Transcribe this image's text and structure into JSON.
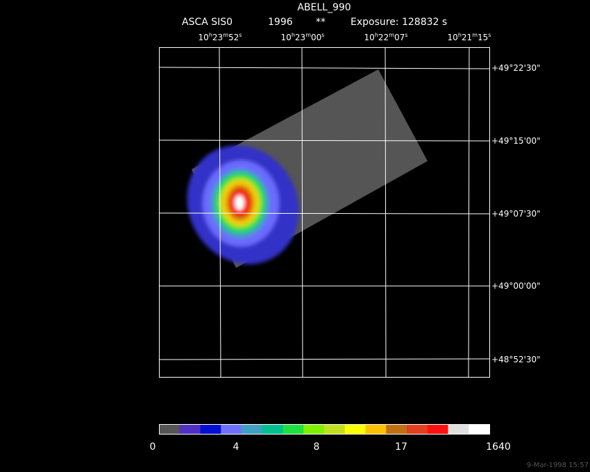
{
  "header": {
    "title": "ABELL_990",
    "instrument": "ASCA SIS0",
    "year": "1996",
    "flag": "**",
    "exposure": "Exposure: 128832 s"
  },
  "ra_labels": [
    "10h23m52s",
    "10h23m00s",
    "10h22m07s",
    "10h21m15s"
  ],
  "dec_labels": [
    "+49°22'30\"",
    "+49°15'00\"",
    "+49°07'30\"",
    "+49°00'00\"",
    "+48°52'30\""
  ],
  "colorbar": {
    "colors": [
      "#555555",
      "#5030c0",
      "#0010d0",
      "#7070ff",
      "#40a0c0",
      "#00c090",
      "#20e040",
      "#80f000",
      "#c0e020",
      "#ffff00",
      "#ffc000",
      "#c07010",
      "#e04020",
      "#ff1010",
      "#e0e0e0",
      "#ffffff"
    ],
    "labels": [
      "0",
      "4",
      "8",
      "17",
      "1640"
    ]
  },
  "footer": "9-Mar-1998 15:57"
}
